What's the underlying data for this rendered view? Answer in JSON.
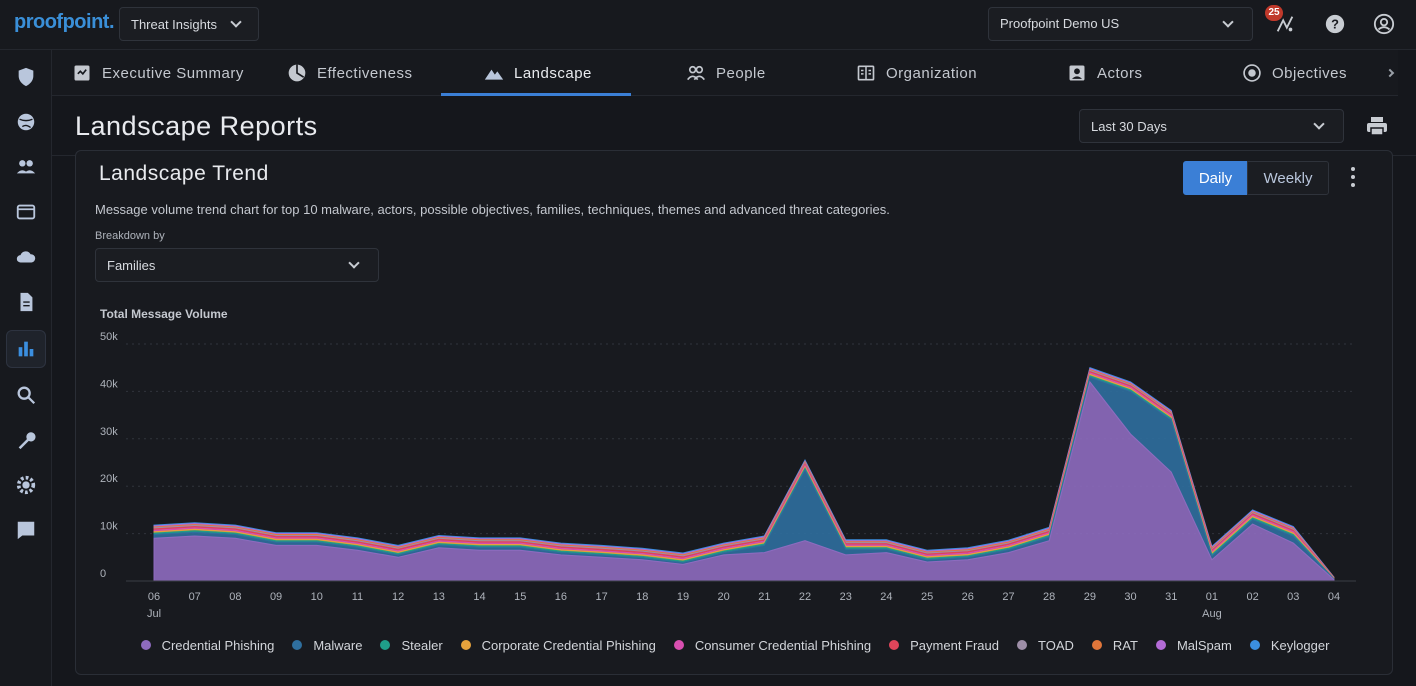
{
  "topbar": {
    "logo": "proofpoint.",
    "app_select": "Threat Insights",
    "org_select": "Proofpoint Demo US",
    "notification_count": "25"
  },
  "tabs": [
    {
      "label": "Executive Summary",
      "icon": "report-icon"
    },
    {
      "label": "Effectiveness",
      "icon": "pie-icon"
    },
    {
      "label": "Landscape",
      "icon": "landscape-icon"
    },
    {
      "label": "People",
      "icon": "people-icon"
    },
    {
      "label": "Organization",
      "icon": "organization-icon"
    },
    {
      "label": "Actors",
      "icon": "actor-icon"
    },
    {
      "label": "Objectives",
      "icon": "target-icon"
    }
  ],
  "header": {
    "title": "Landscape Reports",
    "range": "Last 30 Days"
  },
  "card": {
    "title": "Landscape Trend",
    "daily": "Daily",
    "weekly": "Weekly",
    "description": "Message volume trend chart for top 10 malware, actors, possible objectives, families, techniques, themes and advanced threat categories.",
    "breakdown_label": "Breakdown by",
    "breakdown_value": "Families"
  },
  "chart_data": {
    "type": "area",
    "title": "Total Message Volume",
    "y_ticks": [
      "0",
      "10k",
      "20k",
      "30k",
      "40k",
      "50k"
    ],
    "ylim": [
      0,
      50000
    ],
    "x": [
      "06",
      "07",
      "08",
      "09",
      "10",
      "11",
      "12",
      "13",
      "14",
      "15",
      "16",
      "17",
      "18",
      "19",
      "20",
      "21",
      "22",
      "23",
      "24",
      "25",
      "26",
      "27",
      "28",
      "29",
      "30",
      "31",
      "01",
      "02",
      "03",
      "04"
    ],
    "month_labels": [
      {
        "index": 0,
        "label": "Jul"
      },
      {
        "index": 26,
        "label": "Aug"
      }
    ],
    "series": [
      {
        "name": "Credential Phishing",
        "color": "#8e6bbf",
        "values": [
          9000,
          9500,
          9000,
          7500,
          7500,
          6500,
          5000,
          7000,
          6500,
          6500,
          5500,
          5000,
          4500,
          3500,
          5500,
          6000,
          8500,
          5500,
          6000,
          4000,
          4500,
          6000,
          8500,
          42000,
          31000,
          23000,
          4500,
          12000,
          8000,
          300
        ]
      },
      {
        "name": "Malware",
        "color": "#2f6f9e",
        "values": [
          800,
          800,
          800,
          700,
          700,
          600,
          500,
          600,
          600,
          600,
          500,
          500,
          400,
          400,
          500,
          1500,
          15000,
          1200,
          700,
          500,
          500,
          600,
          800,
          1000,
          9000,
          11000,
          800,
          1000,
          1500,
          100
        ]
      },
      {
        "name": "Stealer",
        "color": "#1f9e89",
        "values": [
          300,
          300,
          300,
          300,
          300,
          300,
          300,
          300,
          300,
          300,
          300,
          300,
          300,
          300,
          300,
          300,
          300,
          300,
          300,
          300,
          300,
          300,
          300,
          300,
          300,
          300,
          300,
          300,
          300,
          50
        ]
      },
      {
        "name": "Corporate Credential Phishing",
        "color": "#e6a23c",
        "values": [
          300,
          300,
          300,
          300,
          300,
          300,
          300,
          300,
          300,
          300,
          300,
          300,
          300,
          300,
          300,
          300,
          300,
          300,
          300,
          300,
          300,
          300,
          300,
          300,
          300,
          300,
          300,
          300,
          300,
          50
        ]
      },
      {
        "name": "Consumer Credential Phishing",
        "color": "#d94fb0",
        "values": [
          300,
          300,
          300,
          300,
          300,
          300,
          300,
          300,
          300,
          300,
          300,
          300,
          300,
          300,
          300,
          300,
          300,
          300,
          300,
          300,
          300,
          300,
          300,
          300,
          300,
          300,
          300,
          300,
          300,
          50
        ]
      },
      {
        "name": "Payment Fraud",
        "color": "#e0455a",
        "values": [
          300,
          300,
          300,
          300,
          300,
          300,
          300,
          300,
          300,
          300,
          300,
          300,
          300,
          300,
          300,
          300,
          300,
          300,
          300,
          300,
          300,
          300,
          300,
          300,
          300,
          300,
          300,
          300,
          300,
          50
        ]
      },
      {
        "name": "TOAD",
        "color": "#9e8fa8",
        "values": [
          200,
          200,
          200,
          200,
          200,
          200,
          200,
          200,
          200,
          200,
          200,
          200,
          200,
          200,
          200,
          200,
          200,
          200,
          200,
          200,
          200,
          200,
          200,
          200,
          200,
          200,
          200,
          200,
          200,
          50
        ]
      },
      {
        "name": "RAT",
        "color": "#e0763a",
        "values": [
          200,
          200,
          200,
          200,
          200,
          200,
          200,
          200,
          200,
          200,
          200,
          200,
          200,
          200,
          200,
          200,
          200,
          200,
          200,
          200,
          200,
          200,
          200,
          200,
          200,
          200,
          200,
          200,
          200,
          50
        ]
      },
      {
        "name": "MalSpam",
        "color": "#b36bd6",
        "values": [
          200,
          200,
          200,
          200,
          200,
          200,
          200,
          200,
          200,
          200,
          200,
          200,
          200,
          200,
          200,
          200,
          200,
          200,
          200,
          200,
          200,
          200,
          200,
          200,
          200,
          200,
          200,
          200,
          200,
          50
        ]
      },
      {
        "name": "Keylogger",
        "color": "#3b8fe0",
        "values": [
          200,
          200,
          200,
          200,
          200,
          200,
          200,
          200,
          200,
          200,
          200,
          200,
          200,
          200,
          200,
          200,
          200,
          200,
          200,
          200,
          200,
          200,
          200,
          200,
          200,
          200,
          200,
          200,
          200,
          50
        ]
      }
    ],
    "grid": true,
    "legend": "bottom"
  }
}
